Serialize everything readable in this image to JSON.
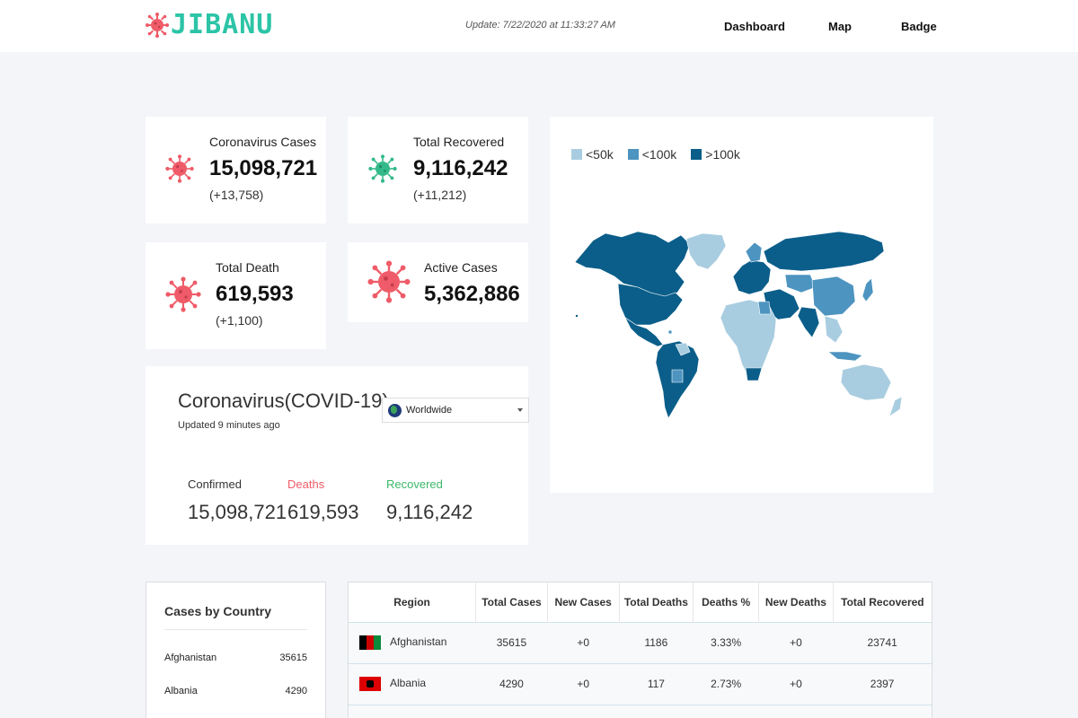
{
  "header": {
    "logo_text": "JIBANU",
    "update_text": "Update: 7/22/2020 at 11:33:27 AM",
    "nav": [
      "Dashboard",
      "Map",
      "Badge"
    ]
  },
  "stats": {
    "cases": {
      "title": "Coronavirus Cases",
      "value": "15,098,721",
      "delta": "(+13,758)"
    },
    "recovered": {
      "title": "Total Recovered",
      "value": "9,116,242",
      "delta": "(+11,212)"
    },
    "death": {
      "title": "Total Death",
      "value": "619,593",
      "delta": "(+1,100)"
    },
    "active": {
      "title": "Active Cases",
      "value": "5,362,886"
    }
  },
  "map": {
    "legend": [
      {
        "label": "<50k",
        "color": "#a9cde0"
      },
      {
        "label": "<100k",
        "color": "#4d94c0"
      },
      {
        "label": ">100k",
        "color": "#0b5e8a"
      }
    ]
  },
  "summary": {
    "title": "Coronavirus(COVID-19)",
    "updated": "Updated 9 minutes ago",
    "region_select": "Worldwide",
    "confirmed_label": "Confirmed",
    "deaths_label": "Deaths",
    "recovered_label": "Recovered",
    "confirmed_value": "15,098,721",
    "deaths_value": "619,593",
    "recovered_value": "9,116,242"
  },
  "cases_by_country": {
    "title": "Cases by Country",
    "items": [
      {
        "name": "Afghanistan",
        "value": "35615"
      },
      {
        "name": "Albania",
        "value": "4290"
      }
    ]
  },
  "table": {
    "headers": [
      "Region",
      "Total Cases",
      "New Cases",
      "Total Deaths",
      "Deaths %",
      "New Deaths",
      "Total Recovered"
    ],
    "rows": [
      {
        "region": "Afghanistan",
        "total_cases": "35615",
        "new_cases": "+0",
        "total_deaths": "1186",
        "deaths_pct": "3.33%",
        "new_deaths": "+0",
        "total_recovered": "23741"
      },
      {
        "region": "Albania",
        "total_cases": "4290",
        "new_cases": "+0",
        "total_deaths": "117",
        "deaths_pct": "2.73%",
        "new_deaths": "+0",
        "total_recovered": "2397"
      }
    ]
  },
  "colors": {
    "accent": "#2bc4a6",
    "virus_red": "#ef5b68",
    "virus_green": "#34b98a",
    "deaths_label": "#ef5b68",
    "recovered_label": "#3cb86a"
  }
}
